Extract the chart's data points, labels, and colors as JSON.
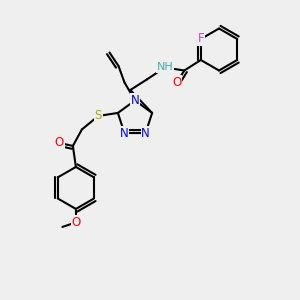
{
  "bg_color": "#efefef",
  "bond_color": "#000000",
  "bond_lw": 1.5,
  "atom_labels": {
    "F": {
      "color": "#cc44cc",
      "fontsize": 9
    },
    "H": {
      "color": "#44aaaa",
      "fontsize": 9
    },
    "N": {
      "color": "#0000ff",
      "fontsize": 9
    },
    "O": {
      "color": "#ff0000",
      "fontsize": 9
    },
    "S": {
      "color": "#cccc00",
      "fontsize": 9
    },
    "C": {
      "color": "#000000",
      "fontsize": 9
    }
  }
}
